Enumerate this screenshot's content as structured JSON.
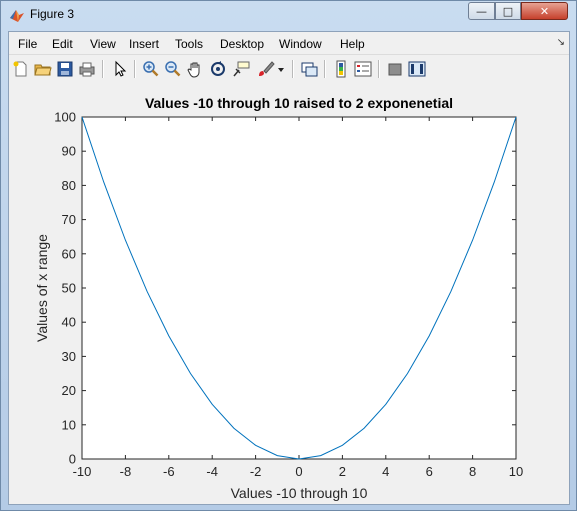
{
  "window": {
    "title": "Figure 3",
    "minimize_glyph": "—",
    "maximize_glyph": "□",
    "close_glyph": "✕"
  },
  "menu": {
    "items": [
      "File",
      "Edit",
      "View",
      "Insert",
      "Tools",
      "Desktop",
      "Window",
      "Help"
    ],
    "overflow_glyph": "↘"
  },
  "toolbar": {
    "icons": [
      "new-figure-icon",
      "open-file-icon",
      "save-icon",
      "print-icon",
      "edit-plot-arrow-icon",
      "zoom-in-icon",
      "zoom-out-icon",
      "pan-hand-icon",
      "rotate-3d-icon",
      "data-cursor-icon",
      "brush-icon",
      "brush-dropdown-icon",
      "link-plot-icon",
      "insert-colorbar-icon",
      "insert-legend-icon",
      "hide-plot-tools-icon",
      "show-plot-tools-icon"
    ]
  },
  "chart_data": {
    "type": "line",
    "title": "Values -10 through 10 raised to 2 exponenetial",
    "xlabel": "Values -10 through 10",
    "ylabel": "Values of x range",
    "xlim": [
      -10,
      10
    ],
    "ylim": [
      0,
      100
    ],
    "xticks": [
      -10,
      -8,
      -6,
      -4,
      -2,
      0,
      2,
      4,
      6,
      8,
      10
    ],
    "yticks": [
      0,
      10,
      20,
      30,
      40,
      50,
      60,
      70,
      80,
      90,
      100
    ],
    "series": [
      {
        "color": "#0072bd",
        "x": [
          -10,
          -9,
          -8,
          -7,
          -6,
          -5,
          -4,
          -3,
          -2,
          -1,
          0,
          1,
          2,
          3,
          4,
          5,
          6,
          7,
          8,
          9,
          10
        ],
        "y": [
          100,
          81,
          64,
          49,
          36,
          25,
          16,
          9,
          4,
          1,
          0,
          1,
          4,
          9,
          16,
          25,
          36,
          49,
          64,
          81,
          100
        ]
      }
    ],
    "grid": false,
    "legend": "none"
  }
}
